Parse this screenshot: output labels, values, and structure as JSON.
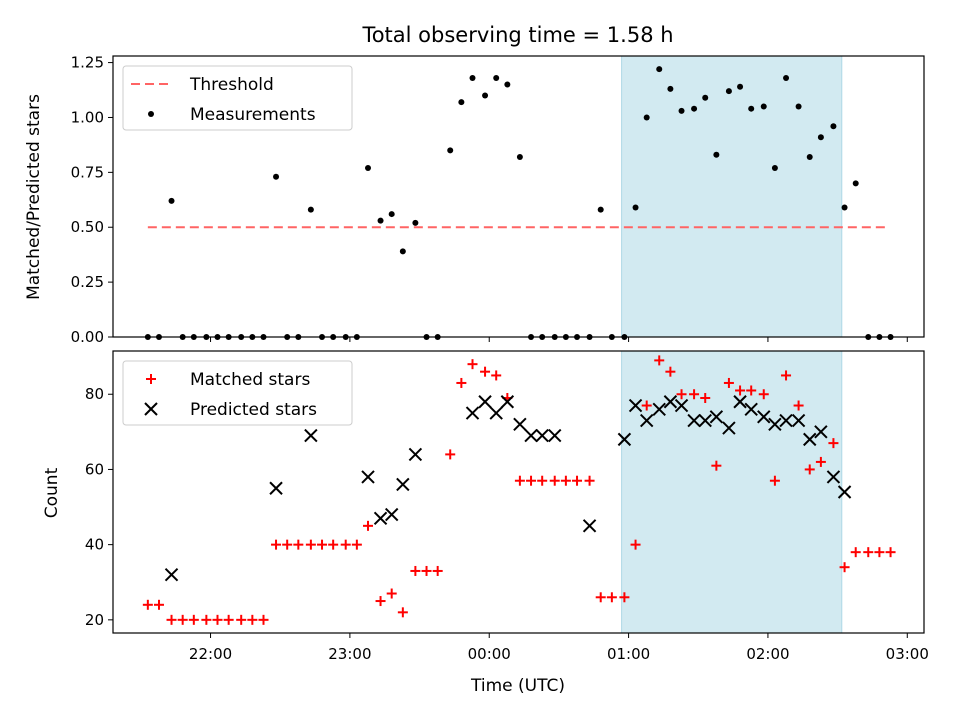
{
  "chart_data": {
    "title": "Total observing time = 1.58 h",
    "x_axis": {
      "label": "Time (UTC)",
      "ticks": [
        "22:00",
        "23:00",
        "00:00",
        "01:00",
        "02:00",
        "03:00"
      ],
      "tick_values_hours": [
        22,
        23,
        24,
        25,
        26,
        27
      ],
      "range_hours": [
        21.3,
        27.12
      ]
    },
    "shaded_interval_hours": [
      24.95,
      26.53
    ],
    "shaded_color": "#add8e6",
    "panels": [
      {
        "type": "scatter",
        "ylabel": "Matched/Predicted stars",
        "ylim": [
          0,
          1.28
        ],
        "yticks": [
          0.0,
          0.25,
          0.5,
          0.75,
          1.0,
          1.25
        ],
        "ytick_labels": [
          "0.00",
          "0.25",
          "0.50",
          "0.75",
          "1.00",
          "1.25"
        ],
        "legend": {
          "placement": "upper-left",
          "entries": [
            "Threshold",
            "Measurements"
          ]
        },
        "threshold": {
          "name": "Threshold",
          "value": 0.5,
          "x_range": [
            21.55,
            26.87
          ],
          "color": "#ff6464"
        },
        "measurements": {
          "name": "Measurements",
          "color": "#000000",
          "x": [
            21.55,
            21.63,
            21.72,
            21.8,
            21.88,
            21.97,
            22.05,
            22.13,
            22.22,
            22.3,
            22.38,
            22.47,
            22.55,
            22.63,
            22.72,
            22.8,
            22.88,
            22.97,
            23.05,
            23.13,
            23.22,
            23.3,
            23.38,
            23.47,
            23.55,
            23.63,
            23.72,
            23.8,
            23.88,
            23.97,
            24.05,
            24.13,
            24.22,
            24.3,
            24.38,
            24.47,
            24.55,
            24.63,
            24.72,
            24.8,
            24.88,
            24.97,
            25.05,
            25.13,
            25.22,
            25.3,
            25.38,
            25.47,
            25.55,
            25.63,
            25.72,
            25.8,
            25.88,
            25.97,
            26.05,
            26.13,
            26.22,
            26.3,
            26.38,
            26.47,
            26.55,
            26.63,
            26.72,
            26.8,
            26.88
          ],
          "y": [
            0,
            0,
            0.62,
            0,
            0,
            0,
            0,
            0,
            0,
            0,
            0,
            0.73,
            0,
            0,
            0.58,
            0,
            0,
            0,
            0,
            0.77,
            0.53,
            0.56,
            0.39,
            0.52,
            0,
            0,
            0.85,
            1.07,
            1.18,
            1.1,
            1.18,
            1.15,
            0.82,
            0,
            0,
            0,
            0,
            0,
            0,
            0.58,
            0,
            0,
            0.59,
            1.0,
            1.22,
            1.13,
            1.03,
            1.04,
            1.09,
            0.83,
            1.12,
            1.14,
            1.04,
            1.05,
            0.77,
            1.18,
            1.05,
            0.82,
            0.91,
            0.96,
            0.59,
            0.7,
            0,
            0,
            0
          ]
        }
      },
      {
        "type": "scatter",
        "ylabel": "Count",
        "ylim": [
          16.5,
          91.5
        ],
        "yticks": [
          20,
          40,
          60,
          80
        ],
        "ytick_labels": [
          "20",
          "40",
          "60",
          "80"
        ],
        "legend": {
          "placement": "upper-left",
          "entries": [
            "Matched stars",
            "Predicted stars"
          ]
        },
        "series": [
          {
            "name": "Matched stars",
            "marker": "plus",
            "color": "#ff0000",
            "x": [
              21.55,
              21.63,
              21.72,
              21.8,
              21.88,
              21.97,
              22.05,
              22.13,
              22.22,
              22.3,
              22.38,
              22.47,
              22.55,
              22.63,
              22.72,
              22.8,
              22.88,
              22.97,
              23.05,
              23.13,
              23.22,
              23.3,
              23.38,
              23.47,
              23.55,
              23.63,
              23.72,
              23.8,
              23.88,
              23.97,
              24.05,
              24.13,
              24.22,
              24.3,
              24.38,
              24.47,
              24.55,
              24.63,
              24.72,
              24.8,
              24.88,
              24.97,
              25.05,
              25.13,
              25.22,
              25.3,
              25.38,
              25.47,
              25.55,
              25.63,
              25.72,
              25.8,
              25.88,
              25.97,
              26.05,
              26.13,
              26.22,
              26.3,
              26.38,
              26.47,
              26.55,
              26.63,
              26.72,
              26.8,
              26.88
            ],
            "y": [
              24,
              24,
              20,
              20,
              20,
              20,
              20,
              20,
              20,
              20,
              20,
              40,
              40,
              40,
              40,
              40,
              40,
              40,
              40,
              45,
              25,
              27,
              22,
              33,
              33,
              33,
              64,
              83,
              88,
              86,
              85,
              79,
              57,
              57,
              57,
              57,
              57,
              57,
              57,
              26,
              26,
              26,
              40,
              77,
              89,
              86,
              80,
              80,
              79,
              61,
              83,
              81,
              81,
              80,
              57,
              85,
              77,
              60,
              62,
              67,
              34,
              38,
              38,
              38,
              38
            ]
          },
          {
            "name": "Predicted stars",
            "marker": "x",
            "color": "#000000",
            "x": [
              21.72,
              22.47,
              22.72,
              23.13,
              23.22,
              23.3,
              23.38,
              23.47,
              23.88,
              23.97,
              24.05,
              24.13,
              24.22,
              24.3,
              24.38,
              24.47,
              24.72,
              24.97,
              25.05,
              25.13,
              25.22,
              25.3,
              25.38,
              25.47,
              25.55,
              25.63,
              25.72,
              25.8,
              25.88,
              25.97,
              26.05,
              26.13,
              26.22,
              26.3,
              26.38,
              26.47,
              26.55
            ],
            "y": [
              32,
              55,
              69,
              58,
              47,
              48,
              56,
              64,
              75,
              78,
              75,
              78,
              72,
              69,
              69,
              69,
              45,
              68,
              77,
              73,
              76,
              78,
              77,
              73,
              73,
              74,
              71,
              78,
              76,
              74,
              72,
              73,
              73,
              68,
              70,
              58,
              54
            ]
          }
        ]
      }
    ]
  }
}
